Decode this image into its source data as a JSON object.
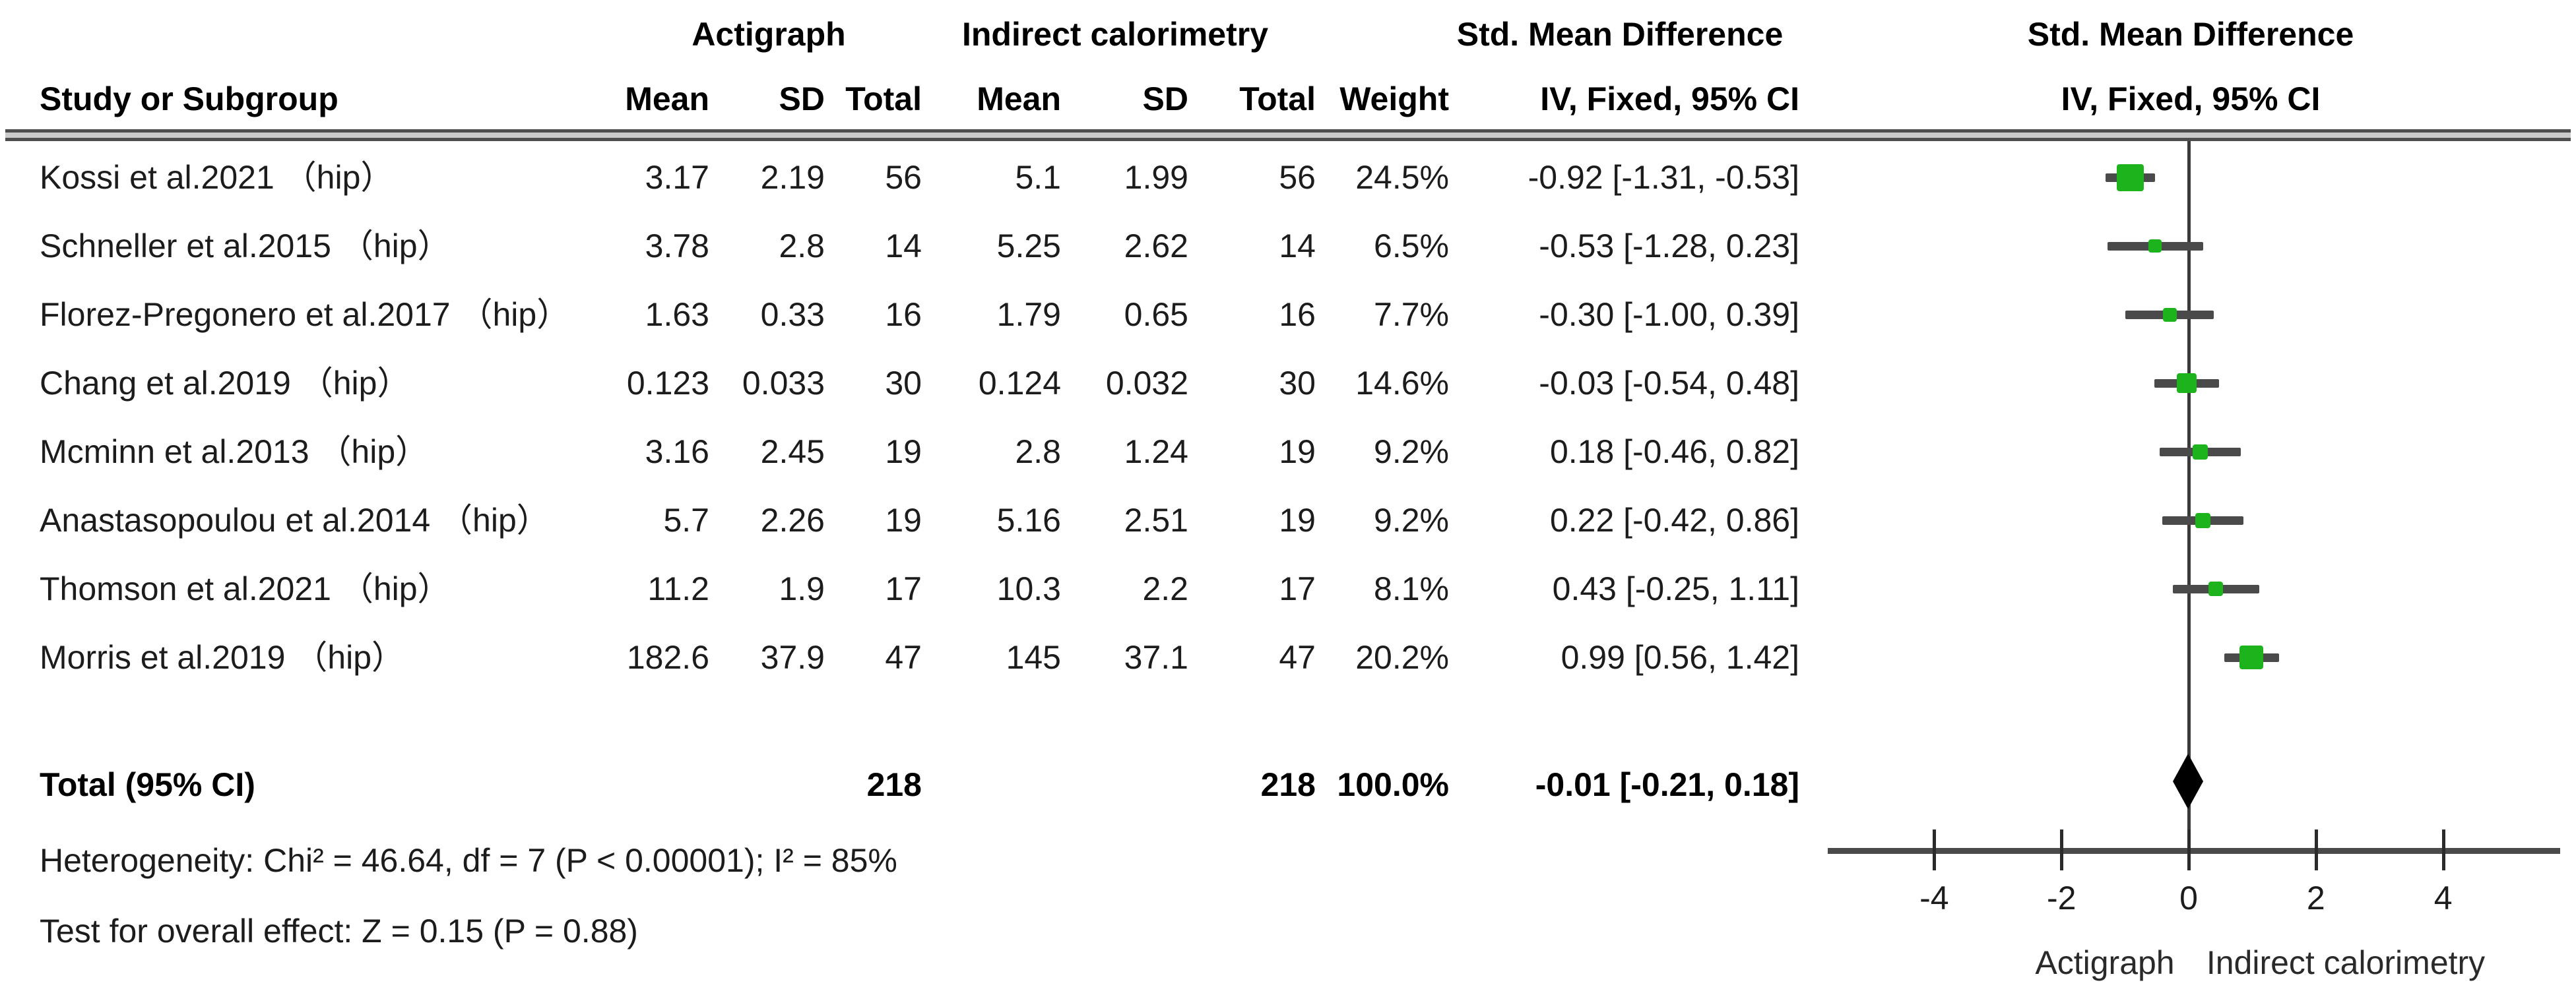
{
  "header": {
    "study_col": "Study or Subgroup",
    "group1": "Actigraph",
    "group2": "Indirect calorimetry",
    "mean": "Mean",
    "sd": "SD",
    "total": "Total",
    "weight": "Weight",
    "effect_col_title": "Std. Mean Difference",
    "effect_col_sub": "IV, Fixed, 95% CI",
    "plot_title": "Std. Mean Difference",
    "plot_sub": "IV, Fixed, 95% CI"
  },
  "footer": {
    "heterogeneity": "Heterogeneity: Chi² = 46.64, df = 7 (P < 0.00001); I² = 85%",
    "overall_effect": "Test for overall effect: Z = 0.15 (P = 0.88)"
  },
  "colors": {
    "square_green": "#1db31d",
    "ci_line_gray": "#4a4a4a",
    "diamond_black": "#000000"
  },
  "chart_data": {
    "type": "forest",
    "title": "Std. Mean Difference, IV, Fixed, 95% CI — Actigraph vs Indirect calorimetry",
    "x_axis": {
      "ticks": [
        -4,
        -2,
        0,
        2,
        4
      ],
      "range": [
        -5.6,
        5.8
      ],
      "left_label": "Actigraph",
      "right_label": "Indirect calorimetry"
    },
    "studies": [
      {
        "name": "Kossi et al.2021 （hip）",
        "mean1": "3.17",
        "sd1": "2.19",
        "total1": "56",
        "mean2": "5.1",
        "sd2": "1.99",
        "total2": "56",
        "weight": "24.5%",
        "ci": "-0.92 [-1.31, -0.53]",
        "smd": -0.92,
        "lo": -1.31,
        "hi": -0.53,
        "w": 24.5
      },
      {
        "name": "Schneller et al.2015 （hip）",
        "mean1": "3.78",
        "sd1": "2.8",
        "total1": "14",
        "mean2": "5.25",
        "sd2": "2.62",
        "total2": "14",
        "weight": "6.5%",
        "ci": "-0.53 [-1.28, 0.23]",
        "smd": -0.53,
        "lo": -1.28,
        "hi": 0.23,
        "w": 6.5
      },
      {
        "name": "Florez-Pregonero et al.2017 （hip）",
        "mean1": "1.63",
        "sd1": "0.33",
        "total1": "16",
        "mean2": "1.79",
        "sd2": "0.65",
        "total2": "16",
        "weight": "7.7%",
        "ci": "-0.30 [-1.00, 0.39]",
        "smd": -0.3,
        "lo": -1.0,
        "hi": 0.39,
        "w": 7.7
      },
      {
        "name": "Chang et al.2019 （hip）",
        "mean1": "0.123",
        "sd1": "0.033",
        "total1": "30",
        "mean2": "0.124",
        "sd2": "0.032",
        "total2": "30",
        "weight": "14.6%",
        "ci": "-0.03 [-0.54, 0.48]",
        "smd": -0.03,
        "lo": -0.54,
        "hi": 0.48,
        "w": 14.6
      },
      {
        "name": "Mcminn et al.2013 （hip）",
        "mean1": "3.16",
        "sd1": "2.45",
        "total1": "19",
        "mean2": "2.8",
        "sd2": "1.24",
        "total2": "19",
        "weight": "9.2%",
        "ci": "0.18 [-0.46, 0.82]",
        "smd": 0.18,
        "lo": -0.46,
        "hi": 0.82,
        "w": 9.2
      },
      {
        "name": "Anastasopoulou et al.2014 （hip）",
        "mean1": "5.7",
        "sd1": "2.26",
        "total1": "19",
        "mean2": "5.16",
        "sd2": "2.51",
        "total2": "19",
        "weight": "9.2%",
        "ci": "0.22 [-0.42, 0.86]",
        "smd": 0.22,
        "lo": -0.42,
        "hi": 0.86,
        "w": 9.2
      },
      {
        "name": "Thomson et al.2021 （hip）",
        "mean1": "11.2",
        "sd1": "1.9",
        "total1": "17",
        "mean2": "10.3",
        "sd2": "2.2",
        "total2": "17",
        "weight": "8.1%",
        "ci": "0.43 [-0.25, 1.11]",
        "smd": 0.43,
        "lo": -0.25,
        "hi": 1.11,
        "w": 8.1
      },
      {
        "name": "Morris et al.2019 （hip）",
        "mean1": "182.6",
        "sd1": "37.9",
        "total1": "47",
        "mean2": "145",
        "sd2": "37.1",
        "total2": "47",
        "weight": "20.2%",
        "ci": "0.99 [0.56, 1.42]",
        "smd": 0.99,
        "lo": 0.56,
        "hi": 1.42,
        "w": 20.2
      }
    ],
    "total": {
      "label": "Total (95% CI)",
      "total1": "218",
      "total2": "218",
      "weight": "100.0%",
      "ci": "-0.01 [-0.21, 0.18]",
      "smd": -0.01,
      "lo": -0.21,
      "hi": 0.18
    }
  }
}
